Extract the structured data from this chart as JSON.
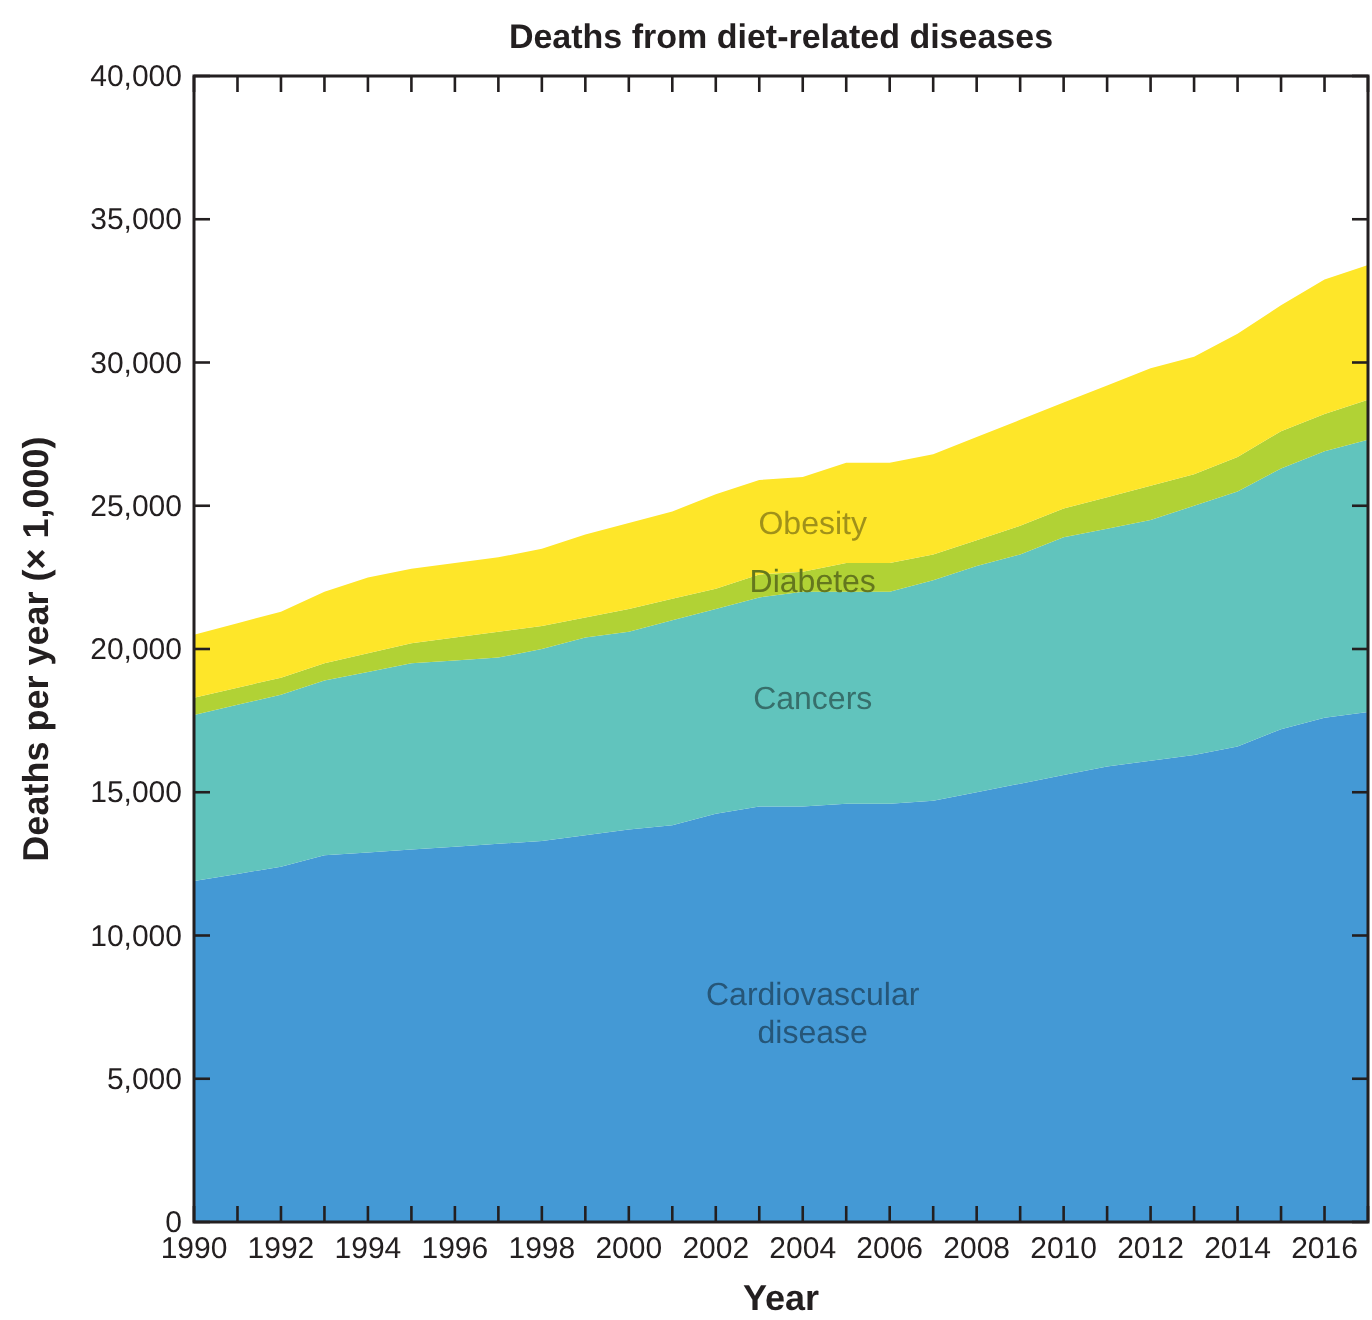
{
  "chart_data": {
    "type": "area",
    "stacked": true,
    "title": "Deaths from diet-related diseases",
    "xlabel": "Year",
    "ylabel": "Deaths per year (× 1,000)",
    "x": [
      1990,
      1991,
      1992,
      1993,
      1994,
      1995,
      1996,
      1997,
      1998,
      1999,
      2000,
      2001,
      2002,
      2003,
      2004,
      2005,
      2006,
      2007,
      2008,
      2009,
      2010,
      2011,
      2012,
      2013,
      2014,
      2015,
      2016,
      2017
    ],
    "series": [
      {
        "name": "Cardiovascular disease",
        "color": "#4499d5",
        "values": [
          11900,
          12150,
          12400,
          12800,
          12900,
          13000,
          13100,
          13200,
          13300,
          13500,
          13700,
          13850,
          14250,
          14500,
          14500,
          14600,
          14600,
          14700,
          15000,
          15300,
          15600,
          15900,
          16100,
          16300,
          16600,
          17200,
          17600,
          17800
        ]
      },
      {
        "name": "Cancers",
        "color": "#61c4bd",
        "values": [
          5800,
          5900,
          6000,
          6100,
          6300,
          6500,
          6500,
          6500,
          6700,
          6900,
          6900,
          7150,
          7150,
          7300,
          7500,
          7400,
          7400,
          7700,
          7900,
          8000,
          8300,
          8300,
          8400,
          8700,
          8900,
          9100,
          9300,
          9500
        ]
      },
      {
        "name": "Diabetes",
        "color": "#b1d235",
        "values": [
          600,
          600,
          600,
          600,
          650,
          700,
          800,
          900,
          800,
          700,
          800,
          750,
          700,
          800,
          700,
          1000,
          1000,
          900,
          900,
          1000,
          1000,
          1100,
          1200,
          1100,
          1200,
          1300,
          1300,
          1400
        ]
      },
      {
        "name": "Obesity",
        "color": "#fee629",
        "values": [
          2200,
          2250,
          2300,
          2500,
          2650,
          2600,
          2600,
          2600,
          2700,
          2900,
          3000,
          3050,
          3300,
          3300,
          3300,
          3500,
          3500,
          3500,
          3600,
          3700,
          3700,
          3900,
          4100,
          4100,
          4300,
          4400,
          4700,
          4700
        ]
      }
    ],
    "xlim": [
      1990,
      2017
    ],
    "xticks": [
      1990,
      {
        "value": 1991,
        "label": null
      },
      1992,
      {
        "value": 1993,
        "label": null
      },
      1994,
      {
        "value": 1995,
        "label": null
      },
      1996,
      {
        "value": 1997,
        "label": null
      },
      1998,
      {
        "value": 1999,
        "label": null
      },
      2000,
      {
        "value": 2001,
        "label": null
      },
      2002,
      {
        "value": 2003,
        "label": null
      },
      2004,
      {
        "value": 2005,
        "label": null
      },
      2006,
      {
        "value": 2007,
        "label": null
      },
      2008,
      {
        "value": 2009,
        "label": null
      },
      2010,
      {
        "value": 2011,
        "label": null
      },
      2012,
      {
        "value": 2013,
        "label": null
      },
      2014,
      {
        "value": 2015,
        "label": null
      },
      2016,
      {
        "value": 2017,
        "label": null
      }
    ],
    "ylim": [
      0,
      40000
    ],
    "yticks": [
      0,
      {
        "value": 5000,
        "label": "5,000"
      },
      {
        "value": 10000,
        "label": "10,000"
      },
      {
        "value": 15000,
        "label": "15,000"
      },
      {
        "value": 20000,
        "label": "20,000"
      },
      {
        "value": 25000,
        "label": "25,000"
      },
      {
        "value": 30000,
        "label": "30,000"
      },
      {
        "value": 35000,
        "label": "35,000"
      },
      {
        "value": 40000,
        "label": "40,000"
      }
    ],
    "grid": false
  }
}
